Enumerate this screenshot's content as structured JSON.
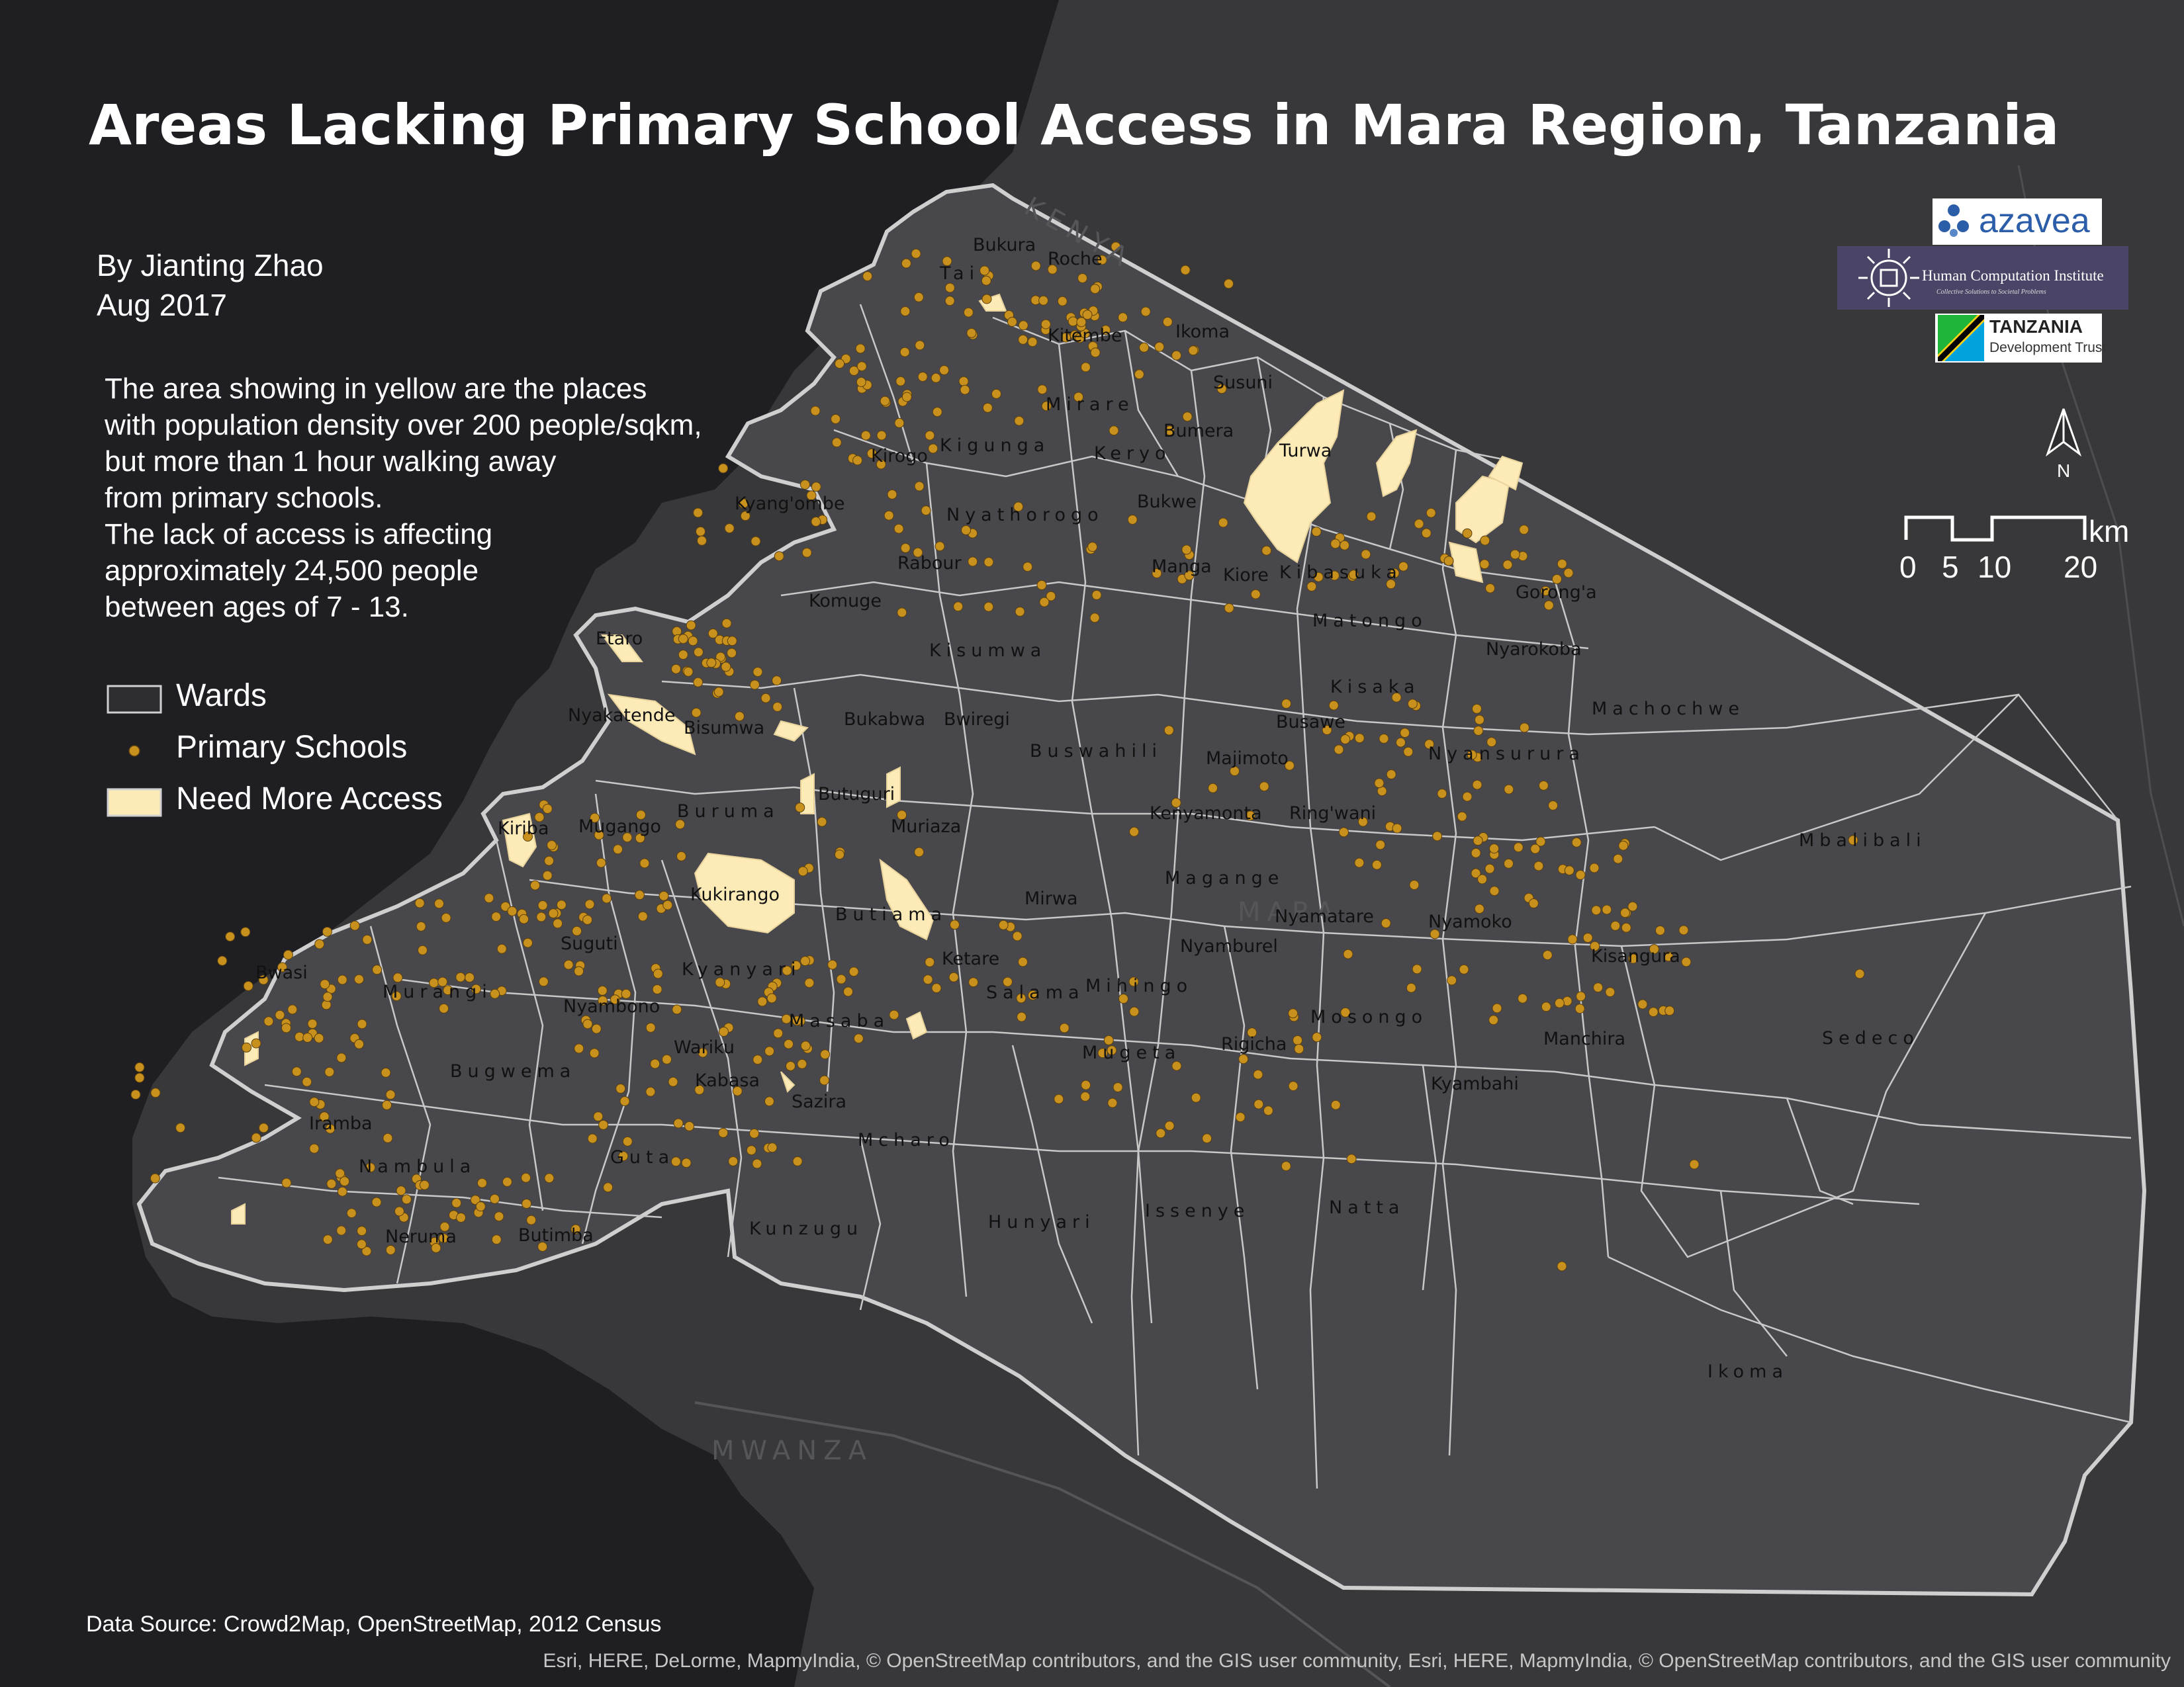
{
  "title": "Areas Lacking Primary School Access in Mara Region, Tanzania",
  "author": "By Jianting Zhao",
  "date": "Aug 2017",
  "description": [
    "The area showing in yellow are the places",
    "with population density over 200 people/sqkm,",
    "but more than 1 hour walking away",
    "from primary schools.",
    "The lack of access is affecting",
    "approximately 24,500 people",
    "between ages of 7 - 13."
  ],
  "legend": [
    {
      "label": "Wards",
      "symbol": "ward-polygon"
    },
    {
      "label": "Primary Schools",
      "symbol": "school-dot"
    },
    {
      "label": "Need More Access",
      "symbol": "need-access-polygon"
    }
  ],
  "colors": {
    "background": "#2d2d30",
    "lake": "#1f1f23",
    "land": "#48484c",
    "ward_border": "#c8c8c8",
    "school": "#c8901c",
    "need_access": "#fdebb7",
    "text": "#ffffff"
  },
  "logos": {
    "azavea": "azavea",
    "hci": "Human Computation Institute",
    "hci_tagline": "Collective Solutions to Societal Problems",
    "tdt_main": "TANZANIA",
    "tdt_sub": "Development Trust"
  },
  "north_arrow": "N",
  "scale_bar": {
    "unit": "km",
    "ticks": [
      "0",
      "5",
      "10",
      "20"
    ]
  },
  "basemap_labels": [
    "KENYA",
    "MARA",
    "MWANZA"
  ],
  "ward_labels": [
    {
      "name": "Bukura"
    },
    {
      "name": "Roche"
    },
    {
      "name": "Tai"
    },
    {
      "name": "Kitembe"
    },
    {
      "name": "Ikoma"
    },
    {
      "name": "Susuni"
    },
    {
      "name": "Mirare"
    },
    {
      "name": "Bumera"
    },
    {
      "name": "Turwa"
    },
    {
      "name": "Kirogo"
    },
    {
      "name": "Kigunga"
    },
    {
      "name": "Keryo"
    },
    {
      "name": "Kyang'ombe"
    },
    {
      "name": "Nyathorogo"
    },
    {
      "name": "Bukwe"
    },
    {
      "name": "Rabour"
    },
    {
      "name": "Manga"
    },
    {
      "name": "Kiore"
    },
    {
      "name": "Kibasuka"
    },
    {
      "name": "Gorong'a"
    },
    {
      "name": "Komuge"
    },
    {
      "name": "Matongo"
    },
    {
      "name": "Kisumwa"
    },
    {
      "name": "Nyarokoba"
    },
    {
      "name": "Etaro"
    },
    {
      "name": "Kisaka"
    },
    {
      "name": "Machochwe"
    },
    {
      "name": "Nyakatende"
    },
    {
      "name": "Bisumwa"
    },
    {
      "name": "Bukabwa"
    },
    {
      "name": "Bwiregi"
    },
    {
      "name": "Busawe"
    },
    {
      "name": "Buswahili"
    },
    {
      "name": "Majimoto"
    },
    {
      "name": "Nyansurura"
    },
    {
      "name": "Butuguri"
    },
    {
      "name": "Buruma"
    },
    {
      "name": "Kenyamonta"
    },
    {
      "name": "Ring'wani"
    },
    {
      "name": "Kiriba"
    },
    {
      "name": "Mugango"
    },
    {
      "name": "Muriaza"
    },
    {
      "name": "Mbalibali"
    },
    {
      "name": "Magange"
    },
    {
      "name": "Kukirango"
    },
    {
      "name": "Butiama"
    },
    {
      "name": "Mirwa"
    },
    {
      "name": "Nyamatare"
    },
    {
      "name": "Nyamoko"
    },
    {
      "name": "Suguti"
    },
    {
      "name": "Nyamburel"
    },
    {
      "name": "Kisangura"
    },
    {
      "name": "Kyanyari"
    },
    {
      "name": "Ketare"
    },
    {
      "name": "Bwasi"
    },
    {
      "name": "Murangi"
    },
    {
      "name": "Salama"
    },
    {
      "name": "Mihingo"
    },
    {
      "name": "Nyambono"
    },
    {
      "name": "Mosongo"
    },
    {
      "name": "Masaba"
    },
    {
      "name": "Manchira"
    },
    {
      "name": "Sedeco"
    },
    {
      "name": "Wariku"
    },
    {
      "name": "Rigicha"
    },
    {
      "name": "Bugwema"
    },
    {
      "name": "Mugeta"
    },
    {
      "name": "Kabasa"
    },
    {
      "name": "Kyambahi"
    },
    {
      "name": "Sazira"
    },
    {
      "name": "Iramba"
    },
    {
      "name": "Mcharo"
    },
    {
      "name": "Guta"
    },
    {
      "name": "Nambula"
    },
    {
      "name": "Issenye"
    },
    {
      "name": "Natta"
    },
    {
      "name": "Kunzugu"
    },
    {
      "name": "Hunyari"
    },
    {
      "name": "Neruma"
    },
    {
      "name": "Butimba"
    },
    {
      "name": "Ikoma"
    }
  ],
  "data_source": "Data Source: Crowd2Map, OpenStreetMap, 2012 Census",
  "attribution": "Esri, HERE, DeLorme, MapmyIndia, © OpenStreetMap contributors, and the GIS user community, Esri, HERE, MapmyIndia, © OpenStreetMap contributors, and the GIS user community"
}
